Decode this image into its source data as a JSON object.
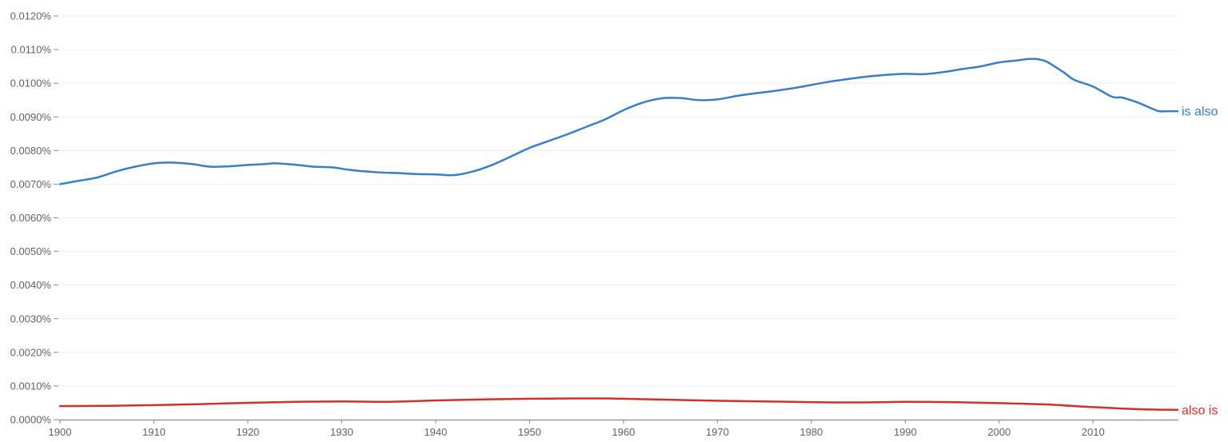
{
  "chart_data": {
    "type": "line",
    "title": "",
    "xlabel": "",
    "ylabel": "",
    "xlim": [
      1900,
      2019
    ],
    "ylim": [
      0,
      0.012
    ],
    "grid": true,
    "legend": "inline-right",
    "y_ticks": [
      {
        "value": 0.0,
        "label": "0.0000%"
      },
      {
        "value": 0.001,
        "label": "0.0010%"
      },
      {
        "value": 0.002,
        "label": "0.0020%"
      },
      {
        "value": 0.003,
        "label": "0.0030%"
      },
      {
        "value": 0.004,
        "label": "0.0040%"
      },
      {
        "value": 0.005,
        "label": "0.0050%"
      },
      {
        "value": 0.006,
        "label": "0.0060%"
      },
      {
        "value": 0.007,
        "label": "0.0070%"
      },
      {
        "value": 0.008,
        "label": "0.0080%"
      },
      {
        "value": 0.009,
        "label": "0.0090%"
      },
      {
        "value": 0.01,
        "label": "0.0100%"
      },
      {
        "value": 0.011,
        "label": "0.0110%"
      },
      {
        "value": 0.012,
        "label": "0.0120%"
      }
    ],
    "x_ticks": [
      {
        "value": 1900,
        "label": "1900"
      },
      {
        "value": 1910,
        "label": "1910"
      },
      {
        "value": 1920,
        "label": "1920"
      },
      {
        "value": 1930,
        "label": "1930"
      },
      {
        "value": 1940,
        "label": "1940"
      },
      {
        "value": 1950,
        "label": "1950"
      },
      {
        "value": 1960,
        "label": "1960"
      },
      {
        "value": 1970,
        "label": "1970"
      },
      {
        "value": 1980,
        "label": "1980"
      },
      {
        "value": 1990,
        "label": "1990"
      },
      {
        "value": 2000,
        "label": "2000"
      },
      {
        "value": 2010,
        "label": "2010"
      }
    ],
    "series": [
      {
        "name": "is also",
        "color": "#3a7ec6",
        "x": [
          1900,
          1902,
          1904,
          1906,
          1908,
          1910,
          1912,
          1914,
          1916,
          1918,
          1920,
          1922,
          1923,
          1925,
          1927,
          1929,
          1931,
          1934,
          1936,
          1938,
          1940,
          1942,
          1944,
          1946,
          1948,
          1950,
          1952,
          1954,
          1956,
          1958,
          1960,
          1962,
          1964,
          1966,
          1968,
          1970,
          1972,
          1974,
          1976,
          1978,
          1980,
          1982,
          1984,
          1986,
          1988,
          1990,
          1992,
          1994,
          1996,
          1998,
          2000,
          2002,
          2003,
          2004,
          2005,
          2006,
          2007,
          2008,
          2010,
          2012,
          2013,
          2014,
          2015,
          2016,
          2017,
          2018,
          2019
        ],
        "values": [
          0.007,
          0.0071,
          0.0072,
          0.00738,
          0.00752,
          0.00762,
          0.00764,
          0.0076,
          0.00752,
          0.00753,
          0.00757,
          0.0076,
          0.00762,
          0.00758,
          0.00752,
          0.0075,
          0.00742,
          0.00735,
          0.00733,
          0.0073,
          0.00729,
          0.00727,
          0.00738,
          0.00757,
          0.00782,
          0.00808,
          0.00828,
          0.00848,
          0.0087,
          0.00892,
          0.0092,
          0.00942,
          0.00955,
          0.00956,
          0.0095,
          0.00952,
          0.00962,
          0.0097,
          0.00977,
          0.00985,
          0.00995,
          0.01005,
          0.01013,
          0.0102,
          0.01025,
          0.01028,
          0.01027,
          0.01033,
          0.01042,
          0.0105,
          0.01062,
          0.01068,
          0.01072,
          0.01072,
          0.01065,
          0.01048,
          0.0103,
          0.0101,
          0.0099,
          0.0096,
          0.00958,
          0.0095,
          0.0094,
          0.00928,
          0.00917,
          0.00917,
          0.00917
        ]
      },
      {
        "name": "also is",
        "color": "#d0312d",
        "x": [
          1900,
          1905,
          1910,
          1915,
          1920,
          1925,
          1930,
          1935,
          1940,
          1945,
          1950,
          1955,
          1958,
          1960,
          1965,
          1970,
          1975,
          1980,
          1985,
          1990,
          1995,
          2000,
          2005,
          2010,
          2015,
          2019
        ],
        "values": [
          0.0004,
          0.00041,
          0.00043,
          0.00046,
          0.0005,
          0.00053,
          0.00054,
          0.00053,
          0.00057,
          0.0006,
          0.00062,
          0.00063,
          0.00063,
          0.00062,
          0.00059,
          0.00056,
          0.00054,
          0.00052,
          0.00051,
          0.00053,
          0.00052,
          0.00049,
          0.00045,
          0.00037,
          0.00031,
          0.00029
        ]
      }
    ]
  }
}
